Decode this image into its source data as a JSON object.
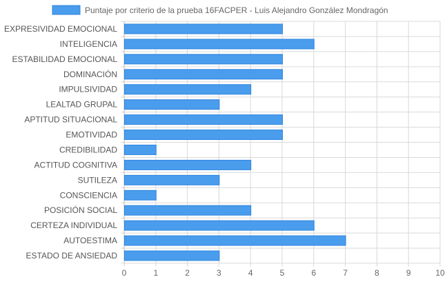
{
  "chart_data": {
    "type": "bar",
    "orientation": "horizontal",
    "categories": [
      "EXPRESIVIDAD EMOCIONAL",
      "INTELIGENCIA",
      "ESTABILIDAD EMOCIONAL",
      "DOMINACIÓN",
      "IMPULSIVIDAD",
      "LEALTAD GRUPAL",
      "APTITUD SITUACIONAL",
      "EMOTIVIDAD",
      "CREDIBILIDAD",
      "ACTITUD COGNITIVA",
      "SUTILEZA",
      "CONSCIENCIA",
      "POSICIÓN SOCIAL",
      "CERTEZA INDIVIDUAL",
      "AUTOESTIMA",
      "ESTADO DE ANSIEDAD"
    ],
    "series": [
      {
        "name": "Puntaje por criterio de la prueba 16FACPER - Luis Alejandro González Mondragón",
        "values": [
          5,
          6,
          5,
          5,
          4,
          3,
          5,
          5,
          1,
          4,
          3,
          1,
          4,
          6,
          7,
          3
        ]
      }
    ],
    "xlim": [
      0,
      10
    ],
    "xticks": [
      "0",
      "1",
      "2",
      "3",
      "4",
      "5",
      "6",
      "7",
      "8",
      "9",
      "10"
    ],
    "grid": true,
    "legend": "top-center",
    "colors": {
      "bar_fill": "#4a9ced",
      "bar_stroke": "#2f86e0",
      "grid": "#d9d9d9",
      "axis": "#666666",
      "label": "#555555"
    }
  }
}
